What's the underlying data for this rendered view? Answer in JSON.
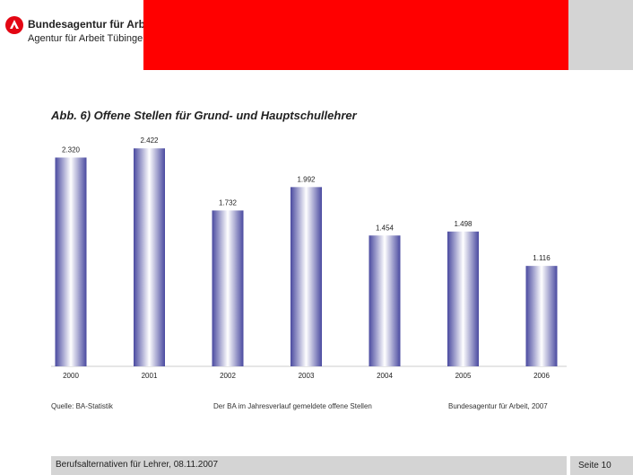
{
  "header": {
    "org_name": "Bundesagentur für Arbeit",
    "org_sub": "Agentur für Arbeit Tübingen",
    "accent_color": "#ff0000",
    "logo_icon": "ba-logo-icon"
  },
  "slide": {
    "title": "Abb. 6) Offene Stellen für Grund- und Hauptschullehrer",
    "source": "Quelle: BA-Statistik",
    "note": "Der BA im Jahresverlauf gemeldete offene Stellen",
    "credit": "Bundesagentur für Arbeit, 2007"
  },
  "chart_data": {
    "type": "bar",
    "categories": [
      "2000",
      "2001",
      "2002",
      "2003",
      "2004",
      "2005",
      "2006"
    ],
    "values": [
      2320,
      2422,
      1732,
      1992,
      1454,
      1498,
      1116
    ],
    "value_labels": [
      "2.320",
      "2.422",
      "1.732",
      "1.992",
      "1.454",
      "1.498",
      "1.116"
    ],
    "ylim": [
      0,
      2500
    ],
    "grid": false,
    "bar_color": "#4a4aa0"
  },
  "footer": {
    "text": "Berufsalternativen für Lehrer, 08.11.2007",
    "page_label": "Seite  10"
  }
}
